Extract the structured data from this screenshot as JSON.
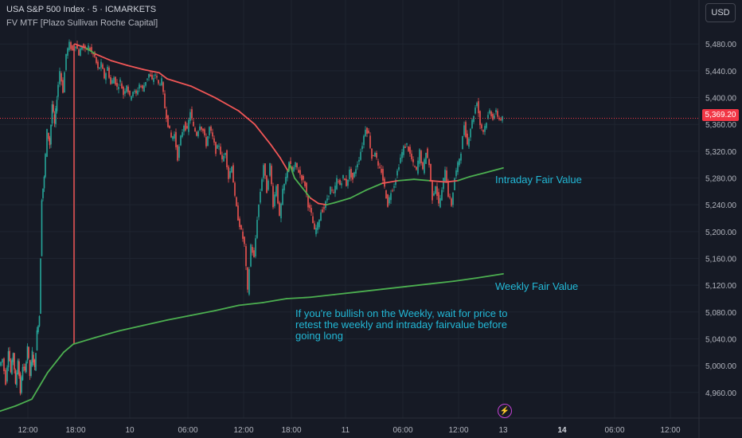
{
  "header": {
    "title": "USA S&P 500 Index · 5 · ICMARKETS",
    "indicator": "FV MTF [Plazo Sullivan Roche Capital]",
    "currency": "USD"
  },
  "price_tag": "5,369.20",
  "annotations": {
    "intraday": "Intraday Fair Value",
    "weekly": "Weekly Fair Value",
    "note": "If you're bullish on the Weekly, wait for price to retest the weekly and intraday fairvalue before going long"
  },
  "colors": {
    "background": "#161a25",
    "grid": "#1f2430",
    "up": "#26a69a",
    "down": "#ef5350",
    "fair_value_above": "#f05656",
    "fair_value_below": "#4caf50",
    "annotation": "#22b8d6",
    "price_line": "#f23645"
  },
  "icons": {
    "event": "lightning-icon"
  },
  "chart_data": {
    "type": "line",
    "ylim": [
      4930,
      5510
    ],
    "y_ticks": [
      "5,480.00",
      "5,440.00",
      "5,400.00",
      "5,360.00",
      "5,320.00",
      "5,280.00",
      "5,240.00",
      "5,200.00",
      "5,160.00",
      "5,120.00",
      "5,080.00",
      "5,040.00",
      "5,000.00",
      "4,960.00"
    ],
    "y_tick_values": [
      5480,
      5440,
      5400,
      5360,
      5320,
      5280,
      5240,
      5200,
      5160,
      5120,
      5080,
      5040,
      5000,
      4960
    ],
    "x_ticks": [
      "12:00",
      "18:00",
      "10",
      "06:00",
      "12:00",
      "18:00",
      "11",
      "06:00",
      "12:00",
      "13",
      "14",
      "06:00",
      "12:00"
    ],
    "x_tick_bold": [
      "14"
    ],
    "current_price": 5369.2,
    "price_series": {
      "name": "",
      "points": [
        [
          0,
          5000
        ],
        [
          4,
          5010
        ],
        [
          8,
          4975
        ],
        [
          11,
          5025
        ],
        [
          14,
          4990
        ],
        [
          17,
          5020
        ],
        [
          20,
          4970
        ],
        [
          23,
          5010
        ],
        [
          26,
          4960
        ],
        [
          29,
          5000
        ],
        [
          32,
          4990
        ],
        [
          35,
          5030
        ],
        [
          38,
          4985
        ],
        [
          41,
          5020
        ],
        [
          44,
          4995
        ],
        [
          47,
          5050
        ],
        [
          50,
          5075
        ],
        [
          53,
          5250
        ],
        [
          56,
          5280
        ],
        [
          60,
          5350
        ],
        [
          63,
          5330
        ],
        [
          66,
          5390
        ],
        [
          69,
          5360
        ],
        [
          72,
          5400
        ],
        [
          76,
          5440
        ],
        [
          80,
          5410
        ],
        [
          84,
          5465
        ],
        [
          88,
          5480
        ],
        [
          92,
          5470
        ],
        [
          96,
          5480
        ],
        [
          100,
          5465
        ],
        [
          104,
          5478
        ],
        [
          108,
          5470
        ],
        [
          112,
          5476
        ],
        [
          116,
          5468
        ],
        [
          120,
          5460
        ],
        [
          124,
          5442
        ],
        [
          128,
          5450
        ],
        [
          132,
          5430
        ],
        [
          136,
          5445
        ],
        [
          140,
          5420
        ],
        [
          144,
          5430
        ],
        [
          148,
          5415
        ],
        [
          152,
          5425
        ],
        [
          156,
          5405
        ],
        [
          160,
          5420
        ],
        [
          164,
          5400
        ],
        [
          168,
          5410
        ],
        [
          172,
          5405
        ],
        [
          176,
          5420
        ],
        [
          180,
          5412
        ],
        [
          184,
          5425
        ],
        [
          188,
          5435
        ],
        [
          192,
          5425
        ],
        [
          196,
          5435
        ],
        [
          200,
          5420
        ],
        [
          204,
          5425
        ],
        [
          208,
          5385
        ],
        [
          212,
          5360
        ],
        [
          216,
          5340
        ],
        [
          220,
          5345
        ],
        [
          224,
          5310
        ],
        [
          228,
          5340
        ],
        [
          232,
          5360
        ],
        [
          236,
          5350
        ],
        [
          240,
          5380
        ],
        [
          244,
          5355
        ],
        [
          248,
          5345
        ],
        [
          252,
          5360
        ],
        [
          256,
          5350
        ],
        [
          260,
          5330
        ],
        [
          264,
          5355
        ],
        [
          268,
          5340
        ],
        [
          272,
          5320
        ],
        [
          276,
          5330
        ],
        [
          280,
          5305
        ],
        [
          284,
          5320
        ],
        [
          288,
          5280
        ],
        [
          292,
          5300
        ],
        [
          296,
          5250
        ],
        [
          300,
          5220
        ],
        [
          304,
          5200
        ],
        [
          308,
          5180
        ],
        [
          312,
          5110
        ],
        [
          316,
          5180
        ],
        [
          320,
          5160
        ],
        [
          324,
          5220
        ],
        [
          328,
          5260
        ],
        [
          332,
          5300
        ],
        [
          336,
          5260
        ],
        [
          340,
          5300
        ],
        [
          344,
          5240
        ],
        [
          348,
          5270
        ],
        [
          352,
          5220
        ],
        [
          356,
          5260
        ],
        [
          360,
          5280
        ],
        [
          364,
          5305
        ],
        [
          368,
          5290
        ],
        [
          372,
          5300
        ],
        [
          376,
          5290
        ],
        [
          380,
          5280
        ],
        [
          384,
          5270
        ],
        [
          388,
          5240
        ],
        [
          392,
          5225
        ],
        [
          396,
          5200
        ],
        [
          400,
          5210
        ],
        [
          404,
          5230
        ],
        [
          408,
          5235
        ],
        [
          412,
          5250
        ],
        [
          416,
          5265
        ],
        [
          420,
          5255
        ],
        [
          424,
          5278
        ],
        [
          428,
          5270
        ],
        [
          432,
          5282
        ],
        [
          436,
          5270
        ],
        [
          440,
          5290
        ],
        [
          444,
          5278
        ],
        [
          448,
          5295
        ],
        [
          452,
          5310
        ],
        [
          456,
          5330
        ],
        [
          460,
          5355
        ],
        [
          464,
          5345
        ],
        [
          468,
          5310
        ],
        [
          472,
          5320
        ],
        [
          476,
          5295
        ],
        [
          480,
          5290
        ],
        [
          484,
          5265
        ],
        [
          488,
          5240
        ],
        [
          492,
          5260
        ],
        [
          496,
          5270
        ],
        [
          500,
          5290
        ],
        [
          504,
          5310
        ],
        [
          508,
          5325
        ],
        [
          512,
          5330
        ],
        [
          516,
          5315
        ],
        [
          520,
          5300
        ],
        [
          524,
          5290
        ],
        [
          528,
          5320
        ],
        [
          532,
          5290
        ],
        [
          536,
          5320
        ],
        [
          540,
          5300
        ],
        [
          544,
          5250
        ],
        [
          548,
          5270
        ],
        [
          552,
          5240
        ],
        [
          556,
          5260
        ],
        [
          560,
          5295
        ],
        [
          564,
          5255
        ],
        [
          568,
          5240
        ],
        [
          572,
          5280
        ],
        [
          576,
          5300
        ],
        [
          580,
          5320
        ],
        [
          584,
          5360
        ],
        [
          588,
          5330
        ],
        [
          592,
          5355
        ],
        [
          596,
          5375
        ],
        [
          600,
          5395
        ],
        [
          604,
          5360
        ],
        [
          608,
          5350
        ],
        [
          612,
          5365
        ],
        [
          616,
          5380
        ],
        [
          620,
          5370
        ],
        [
          624,
          5378
        ],
        [
          628,
          5368
        ],
        [
          632,
          5369
        ]
      ]
    },
    "intraday_fair_value": {
      "name": "Intraday Fair Value",
      "points": [
        [
          94,
          5480
        ],
        [
          108,
          5474
        ],
        [
          120,
          5465
        ],
        [
          140,
          5455
        ],
        [
          160,
          5448
        ],
        [
          180,
          5442
        ],
        [
          200,
          5437
        ],
        [
          210,
          5428
        ],
        [
          240,
          5417
        ],
        [
          270,
          5400
        ],
        [
          300,
          5380
        ],
        [
          320,
          5360
        ],
        [
          340,
          5330
        ],
        [
          352,
          5310
        ],
        [
          362,
          5290
        ],
        [
          364,
          5300
        ],
        [
          370,
          5280
        ],
        [
          380,
          5265
        ],
        [
          390,
          5250
        ],
        [
          400,
          5242
        ],
        [
          410,
          5240
        ],
        [
          420,
          5243
        ],
        [
          440,
          5250
        ],
        [
          460,
          5262
        ],
        [
          480,
          5272
        ],
        [
          500,
          5276
        ],
        [
          520,
          5278
        ],
        [
          540,
          5276
        ],
        [
          560,
          5274
        ],
        [
          575,
          5276
        ],
        [
          590,
          5282
        ],
        [
          610,
          5288
        ],
        [
          632,
          5295
        ]
      ]
    },
    "weekly_fair_value": {
      "name": "Weekly Fair Value",
      "points": [
        [
          0,
          4932
        ],
        [
          20,
          4940
        ],
        [
          40,
          4950
        ],
        [
          60,
          4990
        ],
        [
          80,
          5020
        ],
        [
          92,
          5032
        ],
        [
          120,
          5042
        ],
        [
          150,
          5052
        ],
        [
          180,
          5060
        ],
        [
          210,
          5068
        ],
        [
          240,
          5075
        ],
        [
          270,
          5082
        ],
        [
          300,
          5090
        ],
        [
          330,
          5094
        ],
        [
          360,
          5100
        ],
        [
          390,
          5102
        ],
        [
          420,
          5106
        ],
        [
          450,
          5110
        ],
        [
          480,
          5114
        ],
        [
          510,
          5118
        ],
        [
          540,
          5122
        ],
        [
          570,
          5126
        ],
        [
          600,
          5131
        ],
        [
          632,
          5137
        ]
      ]
    }
  }
}
